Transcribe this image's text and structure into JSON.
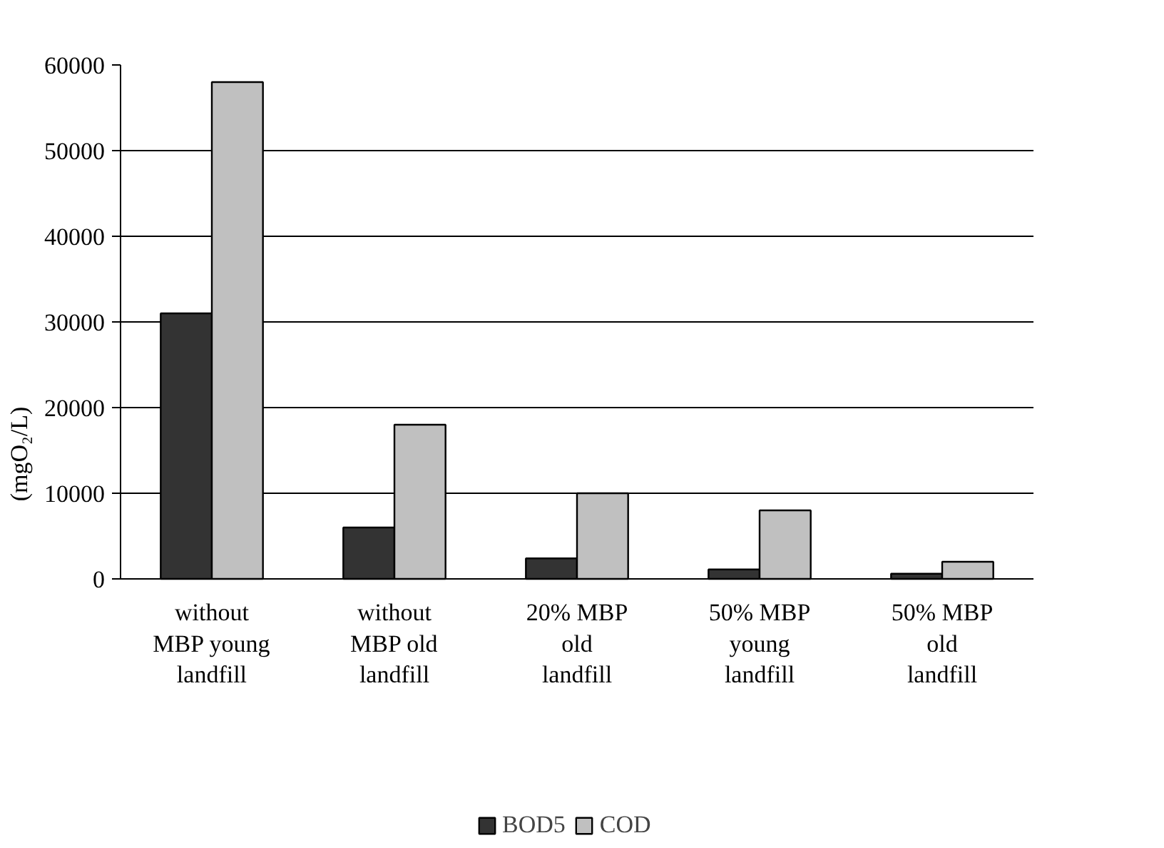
{
  "chart_data": {
    "type": "bar",
    "ylabel": "(mgO₂/L)",
    "categories": [
      "without MBP young landfill",
      "without MBP old landfill",
      "20% MBP old landfill",
      "50% MBP young landfill",
      "50% MBP old landfill"
    ],
    "series": [
      {
        "name": "BOD5",
        "color": "#333333",
        "values": [
          31000,
          6000,
          2400,
          1100,
          600
        ]
      },
      {
        "name": "COD",
        "color": "#c0c0c0",
        "values": [
          58000,
          18000,
          10000,
          8000,
          2000
        ]
      }
    ],
    "ylim": [
      0,
      60000
    ],
    "yticks": [
      0,
      10000,
      20000,
      30000,
      40000,
      50000,
      60000
    ],
    "grid": "y",
    "legend": "bottom"
  }
}
